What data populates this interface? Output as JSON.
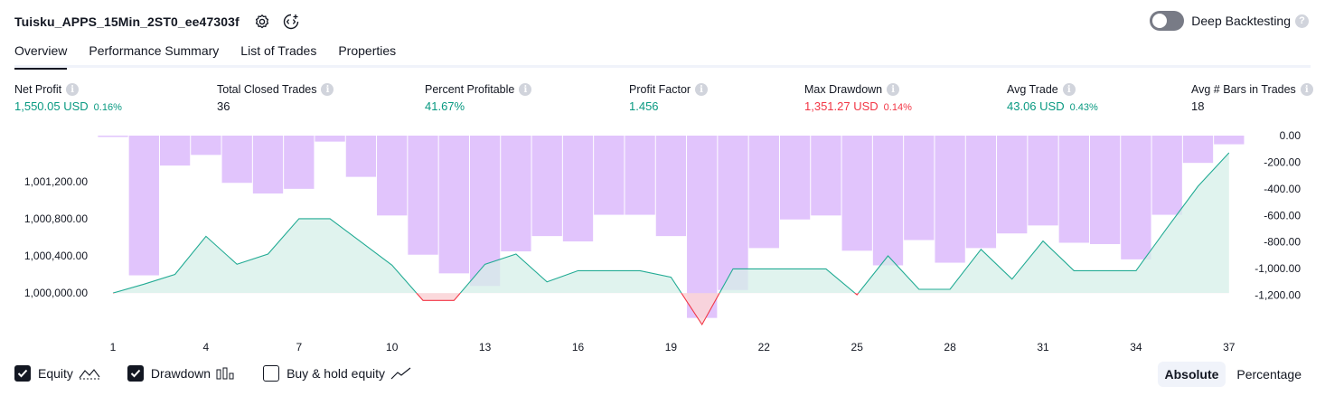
{
  "header": {
    "strategy_name": "Tuisku_APPS_15Min_2ST0_ee47303f",
    "icons": [
      "settings-icon",
      "source-code-icon"
    ],
    "deep_backtesting_label": "Deep Backtesting",
    "deep_backtesting_enabled": false,
    "help_glyph": "?"
  },
  "tabs": [
    {
      "label": "Overview",
      "active": true
    },
    {
      "label": "Performance Summary",
      "active": false
    },
    {
      "label": "List of Trades",
      "active": false
    },
    {
      "label": "Properties",
      "active": false
    }
  ],
  "metrics": [
    {
      "title": "Net Profit",
      "value": "1,550.05 USD",
      "pct": "0.16%",
      "tone": "green"
    },
    {
      "title": "Total Closed Trades",
      "value": "36",
      "pct": "",
      "tone": "neutral"
    },
    {
      "title": "Percent Profitable",
      "value": "41.67%",
      "pct": "",
      "tone": "green"
    },
    {
      "title": "Profit Factor",
      "value": "1.456",
      "pct": "",
      "tone": "green"
    },
    {
      "title": "Max Drawdown",
      "value": "1,351.27 USD",
      "pct": "0.14%",
      "tone": "red"
    },
    {
      "title": "Avg Trade",
      "value": "43.06 USD",
      "pct": "0.43%",
      "tone": "green"
    },
    {
      "title": "Avg # Bars in Trades",
      "value": "18",
      "pct": "",
      "tone": "neutral"
    }
  ],
  "info_glyph": "i",
  "chart_data": {
    "type": "line",
    "x_ticks": [
      "1",
      "4",
      "7",
      "10",
      "13",
      "16",
      "19",
      "22",
      "25",
      "28",
      "31",
      "34",
      "37"
    ],
    "left_axis": {
      "ticks": [
        "1,001,200.00",
        "1,000,800.00",
        "1,000,400.00",
        "1,000,000.00"
      ],
      "tick_values": [
        1001200,
        1000800,
        1000400,
        1000000
      ],
      "ylim": [
        999660,
        1001520
      ]
    },
    "right_axis": {
      "ticks": [
        "0.00",
        "-200.00",
        "-400.00",
        "-600.00",
        "-800.00",
        "-1,000.00",
        "-1,200.00"
      ],
      "tick_values": [
        0,
        -200,
        -400,
        -600,
        -800,
        -1000,
        -1200
      ],
      "ylim": [
        -1420,
        0
      ]
    },
    "x": [
      1,
      2,
      3,
      4,
      5,
      6,
      7,
      8,
      9,
      10,
      11,
      12,
      13,
      14,
      15,
      16,
      17,
      18,
      19,
      20,
      21,
      22,
      23,
      24,
      25,
      26,
      27,
      28,
      29,
      30,
      31,
      32,
      33,
      34,
      35,
      36,
      37
    ],
    "series": [
      {
        "name": "Equity",
        "values": [
          1000000,
          1000095,
          1000200,
          1000610,
          1000310,
          1000420,
          1000800,
          1000800,
          1000550,
          1000300,
          999920,
          999920,
          1000310,
          1000420,
          1000120,
          1000240,
          1000240,
          1000240,
          1000170,
          999660,
          1000260,
          1000260,
          1000260,
          1000260,
          999980,
          1000400,
          1000040,
          1000040,
          1000470,
          1000150,
          1000560,
          1000240,
          1000240,
          1000240,
          1000700,
          1001150,
          1001510
        ]
      },
      {
        "name": "Drawdown",
        "values": [
          -10,
          -1050,
          -225,
          -145,
          -355,
          -435,
          -400,
          -45,
          -310,
          -600,
          -895,
          -1035,
          -1130,
          -870,
          -755,
          -795,
          -595,
          -595,
          -755,
          -1370,
          -1160,
          -845,
          -630,
          -600,
          -865,
          -975,
          -785,
          -955,
          -845,
          -735,
          -675,
          -805,
          -815,
          -930,
          -595,
          -205,
          -65
        ]
      }
    ],
    "ylabel": "",
    "grid": false,
    "colors": {
      "equity_line": "#22ab94",
      "equity_fill": "#d6efe8",
      "equity_below_line": "#f23645",
      "equity_below_fill": "#fbd5d8",
      "drawdown_bar": "#e1c4fc",
      "drawdown_overlap": "#c2c0f5"
    }
  },
  "legend": [
    {
      "label": "Equity",
      "checked": true,
      "glyph": "equity-legend-icon"
    },
    {
      "label": "Drawdown",
      "checked": true,
      "glyph": "drawdown-legend-icon"
    },
    {
      "label": "Buy & hold equity",
      "checked": false,
      "glyph": "buy-hold-legend-icon"
    }
  ],
  "mode_switch": [
    {
      "label": "Absolute",
      "active": true
    },
    {
      "label": "Percentage",
      "active": false
    }
  ]
}
